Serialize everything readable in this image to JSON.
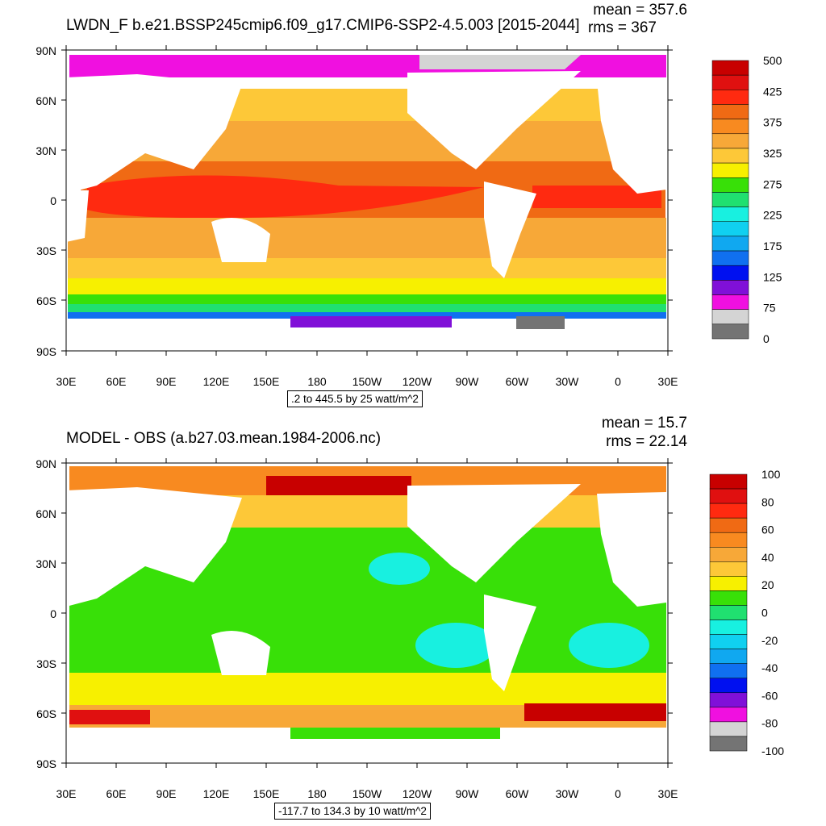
{
  "panels": [
    {
      "title": "LWDN_F b.e21.BSSP245cmip6.f09_g17.CMIP6-SSP2-4.5.003 [2015-2044]",
      "mean": "mean = 357.6",
      "rms": "rms = 367",
      "range_label": ".2 to 445.5 by 25 watt/m^2",
      "lat_labels": [
        "90N",
        "60N",
        "30N",
        "0",
        "30S",
        "60S",
        "90S"
      ],
      "lon_labels": [
        "30E",
        "60E",
        "90E",
        "120E",
        "150E",
        "180",
        "150W",
        "120W",
        "90W",
        "60W",
        "30W",
        "0",
        "30E"
      ],
      "colorbar": {
        "colors": [
          "#c80000",
          "#e01010",
          "#ff2a10",
          "#f06a14",
          "#f88a20",
          "#f7a838",
          "#fdc838",
          "#f7f000",
          "#38e008",
          "#20e070",
          "#18f0e0",
          "#10d0f0",
          "#10a8f0",
          "#1070f0",
          "#0010f0",
          "#8010d8",
          "#f010e0",
          "#d4d4d4",
          "#747474"
        ],
        "labels": [
          "500",
          "425",
          "375",
          "325",
          "275",
          "225",
          "175",
          "125",
          "75",
          "0"
        ]
      }
    },
    {
      "title": "MODEL - OBS (a.b27.03.mean.1984-2006.nc)",
      "mean": "mean = 15.7",
      "rms": "rms = 22.14",
      "range_label": "-117.7 to 134.3 by 10 watt/m^2",
      "lat_labels": [
        "90N",
        "60N",
        "30N",
        "0",
        "30S",
        "60S",
        "90S"
      ],
      "lon_labels": [
        "30E",
        "60E",
        "90E",
        "120E",
        "150E",
        "180",
        "150W",
        "120W",
        "90W",
        "60W",
        "30W",
        "0",
        "30E"
      ],
      "colorbar": {
        "colors": [
          "#c80000",
          "#e01010",
          "#ff2a10",
          "#f06a14",
          "#f88a20",
          "#f7a838",
          "#fdc838",
          "#f7f000",
          "#38e008",
          "#20e070",
          "#18f0e0",
          "#10d0f0",
          "#10a8f0",
          "#1070f0",
          "#0010f0",
          "#8010d8",
          "#f010e0",
          "#d4d4d4",
          "#747474"
        ],
        "labels": [
          "100",
          "80",
          "60",
          "40",
          "20",
          "0",
          "-20",
          "-40",
          "-60",
          "-80",
          "-100"
        ]
      }
    }
  ]
}
